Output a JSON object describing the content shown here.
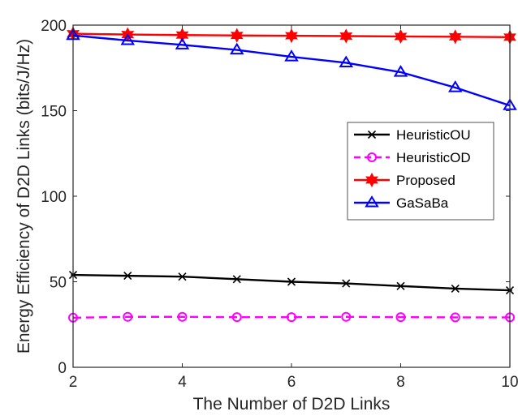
{
  "chart_data": {
    "type": "line",
    "xlabel": "The Number of D2D Links",
    "ylabel": "Energy Efficiency of D2D Links (bits/J/Hz)",
    "xlim": [
      2,
      10
    ],
    "ylim": [
      0,
      200
    ],
    "xticks": [
      2,
      4,
      6,
      8,
      10
    ],
    "yticks": [
      0,
      50,
      100,
      150,
      200
    ],
    "grid": false,
    "legend_position": "right",
    "x": [
      2,
      3,
      4,
      5,
      6,
      7,
      8,
      9,
      10
    ],
    "series": [
      {
        "name": "HeuristicOU",
        "color": "#000000",
        "marker": "x-star",
        "dash": "solid",
        "values": [
          54,
          53.5,
          53,
          51.5,
          50,
          49,
          47.5,
          46,
          45
        ]
      },
      {
        "name": "HeuristicOD",
        "color": "#ff00ff",
        "marker": "circle",
        "dash": "dashed",
        "values": [
          29,
          29.5,
          29.5,
          29.3,
          29.3,
          29.5,
          29.3,
          29.2,
          29.2
        ]
      },
      {
        "name": "Proposed",
        "color": "#ff0000",
        "marker": "hexagram",
        "dash": "solid",
        "values": [
          195,
          194.5,
          194.2,
          194,
          193.8,
          193.6,
          193.4,
          193.2,
          193
        ]
      },
      {
        "name": "GaSaBa",
        "color": "#0000ff",
        "marker": "triangle",
        "dash": "solid",
        "values": [
          194,
          191,
          188.5,
          185.5,
          181.5,
          178,
          172.5,
          163.5,
          153
        ]
      }
    ]
  }
}
